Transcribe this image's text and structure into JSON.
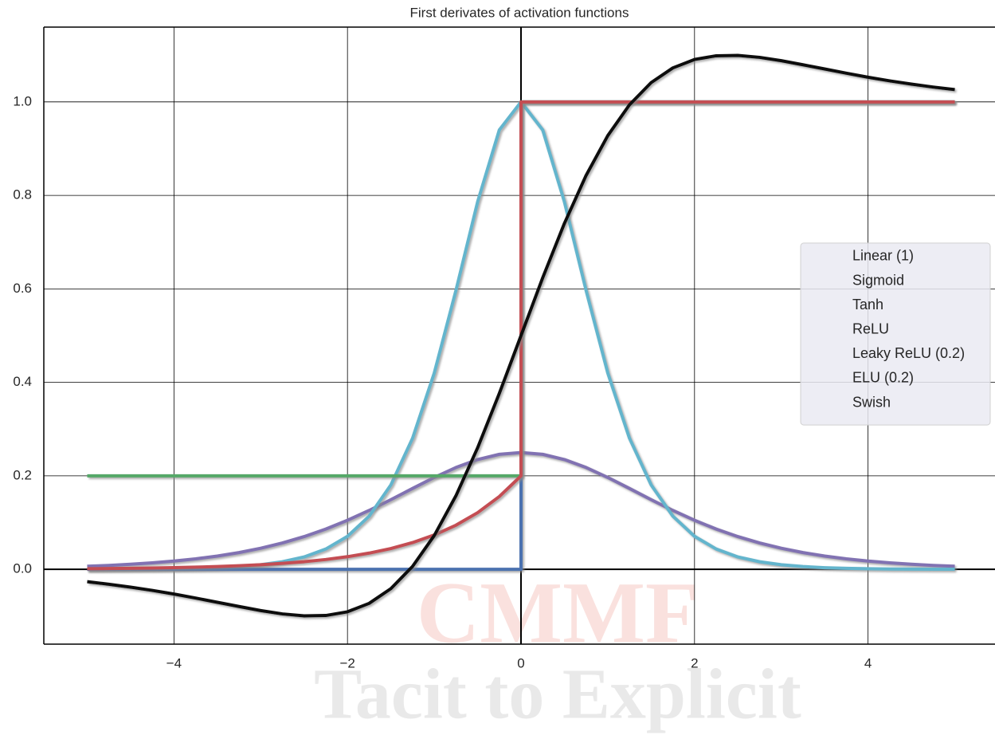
{
  "chart_data": {
    "type": "line",
    "title": "First derivates of activation functions",
    "watermark": [
      "CMMF",
      "Tacit to Explicit"
    ],
    "x": [
      -5,
      -4.75,
      -4.5,
      -4.25,
      -4,
      -3.75,
      -3.5,
      -3.25,
      -3,
      -2.75,
      -2.5,
      -2.25,
      -2,
      -1.75,
      -1.5,
      -1.25,
      -1,
      -0.75,
      -0.5,
      -0.25,
      0,
      0.25,
      0.5,
      0.75,
      1,
      1.25,
      1.5,
      1.75,
      2,
      2.25,
      2.5,
      2.75,
      3,
      3.25,
      3.5,
      3.75,
      4,
      4.25,
      4.5,
      4.75,
      5
    ],
    "xlim": [
      -5.5,
      5.5
    ],
    "ylim": [
      -0.16,
      1.16
    ],
    "xticks": [
      {
        "value": -4,
        "label": "−4"
      },
      {
        "value": -2,
        "label": "−2"
      },
      0,
      2,
      4
    ],
    "yticks": [
      {
        "value": 0,
        "label": "0.0"
      },
      0.2,
      0.4,
      0.6,
      0.8,
      {
        "value": 1,
        "label": "1.0"
      }
    ],
    "grid": true,
    "legend": "center right",
    "series": [
      {
        "name": "Linear (1)",
        "color": "#ccb974",
        "x": [
          -5,
          5
        ],
        "values": [
          1,
          1
        ]
      },
      {
        "name": "Sigmoid",
        "color": "#8172b2",
        "values": [
          0.0066,
          0.0085,
          0.0109,
          0.0139,
          0.0177,
          0.0225,
          0.0285,
          0.0359,
          0.0452,
          0.0565,
          0.0701,
          0.0862,
          0.105,
          0.1261,
          0.1491,
          0.1731,
          0.1966,
          0.2179,
          0.235,
          0.2461,
          0.25,
          0.2461,
          0.235,
          0.2179,
          0.1966,
          0.1731,
          0.1491,
          0.1261,
          0.105,
          0.0862,
          0.0701,
          0.0565,
          0.0452,
          0.0359,
          0.0285,
          0.0225,
          0.0177,
          0.0139,
          0.0109,
          0.0085,
          0.0066
        ]
      },
      {
        "name": "Tanh",
        "color": "#64b5cd",
        "values": [
          0.0002,
          0.0003,
          0.0005,
          0.0008,
          0.0013,
          0.0022,
          0.0036,
          0.006,
          0.0099,
          0.0163,
          0.0266,
          0.0435,
          0.0707,
          0.1138,
          0.1807,
          0.2805,
          0.42,
          0.5967,
          0.7864,
          0.94,
          1,
          0.94,
          0.7864,
          0.5967,
          0.42,
          0.2805,
          0.1807,
          0.1138,
          0.0707,
          0.0435,
          0.0266,
          0.0163,
          0.0099,
          0.006,
          0.0036,
          0.0022,
          0.0013,
          0.0008,
          0.0005,
          0.0003,
          0.0002
        ]
      },
      {
        "name": "ReLU",
        "color": "#4c72b0",
        "x": [
          -5,
          0,
          0,
          5
        ],
        "values": [
          0,
          0,
          1,
          1
        ]
      },
      {
        "name": "Leaky ReLU (0.2)",
        "color": "#55a868",
        "x": [
          -5,
          0,
          0,
          5
        ],
        "values": [
          0.2,
          0.2,
          1,
          1
        ]
      },
      {
        "name": "ELU (0.2)",
        "color": "#c44e52",
        "x": [
          -5,
          -4.75,
          -4.5,
          -4.25,
          -4,
          -3.75,
          -3.5,
          -3.25,
          -3,
          -2.75,
          -2.5,
          -2.25,
          -2,
          -1.75,
          -1.5,
          -1.25,
          -1,
          -0.75,
          -0.5,
          -0.25,
          0,
          0,
          5
        ],
        "values": [
          0.0013,
          0.0017,
          0.0022,
          0.0029,
          0.0037,
          0.0047,
          0.006,
          0.0078,
          0.01,
          0.0128,
          0.0164,
          0.0211,
          0.0271,
          0.0348,
          0.0446,
          0.0573,
          0.0736,
          0.0945,
          0.1213,
          0.1558,
          0.2,
          1,
          1
        ]
      },
      {
        "name": "Swish",
        "color": "#111111",
        "values": [
          -0.0263,
          -0.0318,
          -0.0381,
          -0.045,
          -0.0528,
          -0.0614,
          -0.0705,
          -0.0794,
          -0.0882,
          -0.0953,
          -0.0994,
          -0.0987,
          -0.0908,
          -0.0727,
          -0.0413,
          0.0063,
          0.0723,
          0.1574,
          0.26,
          0.3763,
          0.5,
          0.6237,
          0.74,
          0.8426,
          0.9277,
          0.9937,
          1.0413,
          1.0727,
          1.0908,
          1.0987,
          1.0994,
          1.0953,
          1.0882,
          1.0794,
          1.0705,
          1.0614,
          1.0528,
          1.045,
          1.0381,
          1.0318,
          1.0263
        ]
      }
    ]
  }
}
